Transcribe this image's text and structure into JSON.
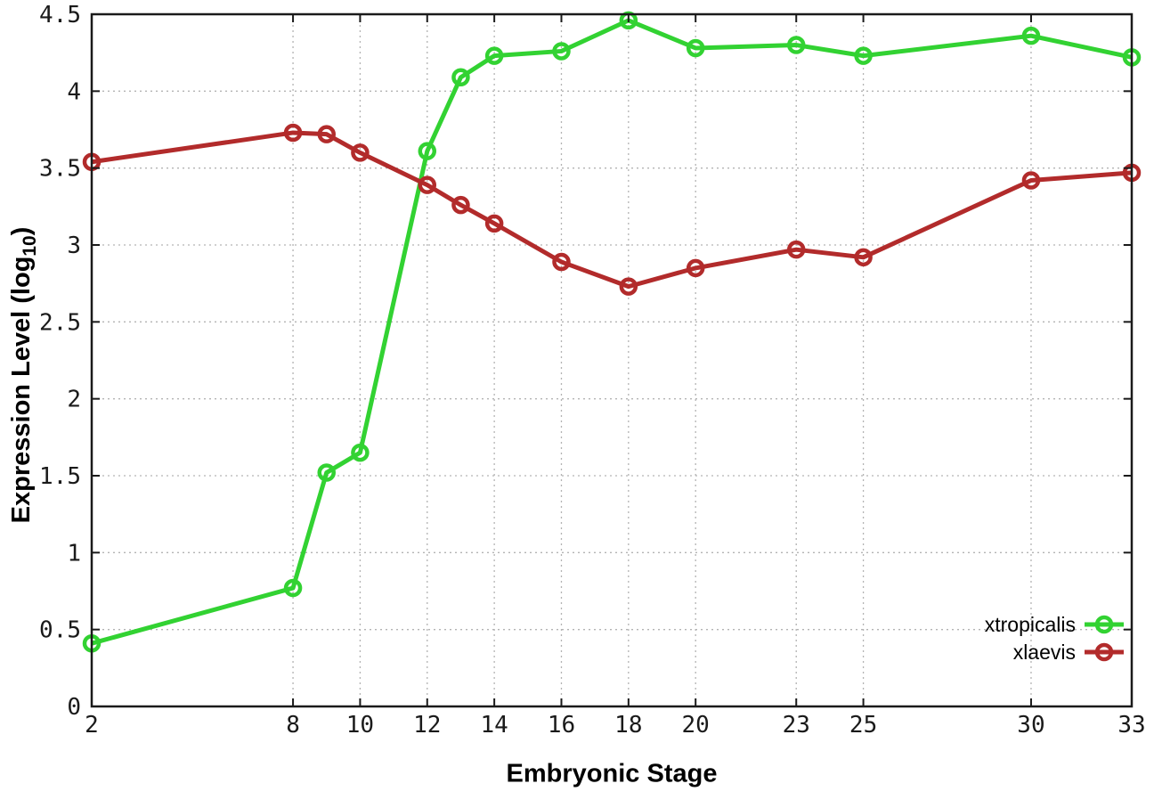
{
  "chart_data": {
    "type": "line",
    "title": "",
    "xlabel": "Embryonic Stage",
    "ylabel": "Expression Level (log10)",
    "ylabel_parts": {
      "pre": "Expression Level (log",
      "sub": "10",
      "post": ")"
    },
    "x": [
      2,
      8,
      9,
      10,
      12,
      13,
      14,
      16,
      18,
      20,
      23,
      25,
      30,
      33
    ],
    "series": [
      {
        "name": "xtropicalis",
        "color": "#32d232",
        "values": [
          0.41,
          0.77,
          1.52,
          1.65,
          3.61,
          4.09,
          4.23,
          4.26,
          4.46,
          4.28,
          4.3,
          4.23,
          4.36,
          4.22
        ]
      },
      {
        "name": "xlaevis",
        "color": "#b22b2b",
        "values": [
          3.54,
          3.73,
          3.72,
          3.6,
          3.39,
          3.26,
          3.14,
          2.89,
          2.73,
          2.85,
          2.97,
          2.92,
          3.42,
          3.47
        ]
      }
    ],
    "xlim": [
      2,
      33
    ],
    "ylim": [
      0,
      4.5
    ],
    "x_ticks": [
      2,
      8,
      10,
      12,
      14,
      16,
      18,
      20,
      23,
      25,
      30,
      33
    ],
    "x_tick_labels": [
      "2",
      "8",
      "10",
      "12",
      "14",
      "16",
      "18",
      "20",
      "23",
      "25",
      "30",
      "33"
    ],
    "y_ticks": [
      0,
      0.5,
      1,
      1.5,
      2,
      2.5,
      3,
      3.5,
      4,
      4.5
    ],
    "y_tick_labels": [
      "0",
      "0.5",
      "1",
      "1.5",
      "2",
      "2.5",
      "3",
      "3.5",
      "4",
      "4.5"
    ],
    "grid": true,
    "legend_position": "bottom-right"
  },
  "colors": {
    "axis": "#1a1a1a",
    "grid": "#b3b3b3",
    "background": "#ffffff",
    "series_green": "#32d232",
    "series_red": "#b22b2b"
  }
}
